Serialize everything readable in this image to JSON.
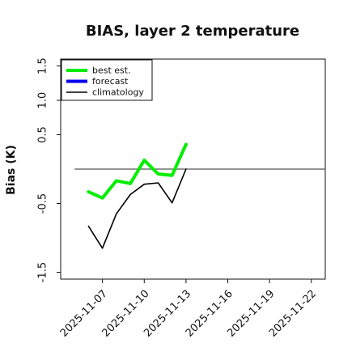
{
  "chart_data": {
    "type": "line",
    "title": "BIAS, layer 2 temperature",
    "ylabel": "Bias (K)",
    "xlabel": "",
    "ylim": [
      -1.6,
      1.6
    ],
    "xlim": [
      "2025-11-04",
      "2025-11-23"
    ],
    "y_ticks": [
      "-1.5",
      "-0.5",
      "0.5",
      "1.0",
      "1.5"
    ],
    "x_ticks": [
      {
        "date": "2025-11-07",
        "label": "2025-11-07",
        "color": "#111111"
      },
      {
        "date": "2025-11-10",
        "label": "2025-11-10",
        "color": "#111111"
      },
      {
        "date": "2025-11-13",
        "label": "2025-11-13",
        "color": "#2e8b22"
      },
      {
        "date": "2025-11-16",
        "label": "2025-11-16",
        "color": "#111111"
      },
      {
        "date": "2025-11-19",
        "label": "2025-11-19",
        "color": "#111111"
      },
      {
        "date": "2025-11-22",
        "label": "2025-11-22",
        "color": "#111111"
      }
    ],
    "zero_line": {
      "y": 0,
      "from": "2025-11-05",
      "to": "2025-11-23",
      "color": "#555555"
    },
    "legend": {
      "placement": "top-left"
    },
    "series": [
      {
        "name": "best est.",
        "color": "#00ee00",
        "x": [
          "2025-11-06",
          "2025-11-07",
          "2025-11-08",
          "2025-11-09",
          "2025-11-10",
          "2025-11-11",
          "2025-11-12",
          "2025-11-13"
        ],
        "y": [
          -0.33,
          -0.42,
          -0.17,
          -0.21,
          0.13,
          -0.07,
          -0.09,
          0.36
        ]
      },
      {
        "name": "forecast",
        "color": "#0000ee",
        "x": [],
        "y": []
      },
      {
        "name": "climatology",
        "color": "#000000",
        "x": [
          "2025-11-06",
          "2025-11-07",
          "2025-11-08",
          "2025-11-09",
          "2025-11-10",
          "2025-11-11",
          "2025-11-12",
          "2025-11-13"
        ],
        "y": [
          -0.83,
          -1.15,
          -0.65,
          -0.37,
          -0.22,
          -0.2,
          -0.49,
          0.0
        ]
      }
    ]
  }
}
